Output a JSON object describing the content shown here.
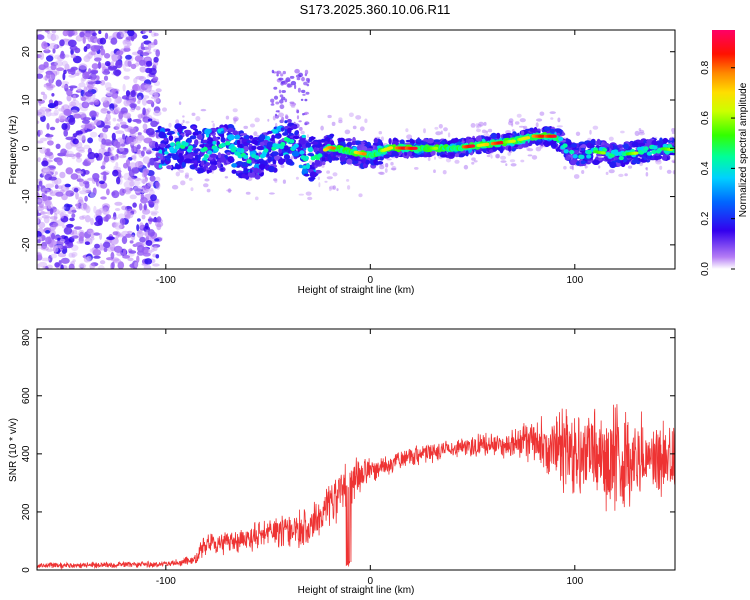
{
  "title": "S173.2025.360.10.06.R11",
  "chart_data": [
    {
      "type": "heatmap",
      "title": "S173.2025.360.10.06.R11",
      "xlabel": "Height of straight line (km)",
      "ylabel": "Frequency (Hz)",
      "xlim": [
        -163,
        149
      ],
      "ylim": [
        -25,
        24.5
      ],
      "xticks": [
        -100,
        0,
        100
      ],
      "yticks": [
        -20,
        -10,
        0,
        10,
        20
      ],
      "xtick_labels": [
        "-100",
        "0",
        "100"
      ],
      "ytick_labels": [
        "-20",
        "-10",
        "0",
        "10",
        "20"
      ],
      "colorbar": {
        "label": "Normalized spectral amplitude",
        "range": [
          0,
          0.95
        ],
        "ticks": [
          0.0,
          0.2,
          0.4,
          0.6,
          0.8
        ],
        "tick_labels": [
          "0.0",
          "0.2",
          "0.4",
          "0.6",
          "0.8"
        ]
      },
      "ridge": {
        "description_points_km_hz": [
          [
            -105,
            0.0
          ],
          [
            -90,
            0.6
          ],
          [
            -80,
            -1.0
          ],
          [
            -70,
            0.3
          ],
          [
            -60,
            -2.0
          ],
          [
            -50,
            -1.0
          ],
          [
            -40,
            1.5
          ],
          [
            -30,
            -2.5
          ],
          [
            -20,
            0.2
          ],
          [
            -10,
            -0.6
          ],
          [
            0,
            -1.4
          ],
          [
            10,
            0.1
          ],
          [
            20,
            0.0
          ],
          [
            40,
            0.0
          ],
          [
            55,
            0.7
          ],
          [
            70,
            1.5
          ],
          [
            80,
            2.5
          ],
          [
            90,
            2.5
          ],
          [
            100,
            -1.5
          ],
          [
            110,
            -0.7
          ],
          [
            120,
            -1.4
          ],
          [
            130,
            -1.0
          ],
          [
            140,
            0.0
          ],
          [
            149,
            -0.3
          ]
        ],
        "peak_amplitude_range_km": [
          -10,
          90
        ]
      }
    },
    {
      "type": "line",
      "title": "",
      "xlabel": "Height of straight line (km)",
      "ylabel": "SNR (10 * v/v)",
      "xlim": [
        -163,
        149
      ],
      "ylim": [
        0,
        830
      ],
      "xticks": [
        -100,
        0,
        100
      ],
      "yticks": [
        0,
        200,
        400,
        600,
        800
      ],
      "xtick_labels": [
        "-100",
        "0",
        "100"
      ],
      "ytick_labels": [
        "0",
        "200",
        "400",
        "600",
        "800"
      ],
      "series": [
        {
          "name": "SNR",
          "color": "#ee3333",
          "envelope_x": [
            -163,
            -100,
            -85,
            -82,
            -70,
            -50,
            -30,
            -15,
            -5,
            0,
            20,
            40,
            60,
            80,
            90,
            100,
            120,
            135,
            149
          ],
          "envelope_mean": [
            15,
            20,
            35,
            90,
            90,
            130,
            140,
            270,
            330,
            340,
            390,
            420,
            430,
            440,
            420,
            400,
            380,
            390,
            390
          ],
          "envelope_amplitude": [
            12,
            12,
            20,
            50,
            50,
            60,
            80,
            100,
            80,
            50,
            40,
            40,
            55,
            80,
            140,
            180,
            230,
            150,
            150
          ]
        }
      ]
    }
  ]
}
